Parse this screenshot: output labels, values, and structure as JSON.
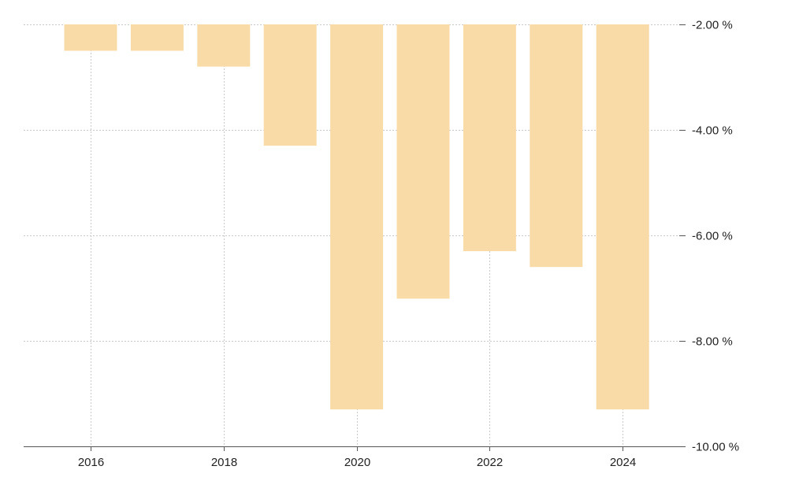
{
  "chart_data": {
    "type": "bar",
    "categories": [
      "2016",
      "2017",
      "2018",
      "2019",
      "2020",
      "2021",
      "2022",
      "2023",
      "2024"
    ],
    "values": [
      -2.5,
      -2.5,
      -2.8,
      -4.3,
      -9.3,
      -7.2,
      -6.3,
      -6.6,
      -9.3
    ],
    "baseline": -2.0,
    "ylim": [
      -10.0,
      -2.0
    ],
    "yticks": [
      -2,
      -4,
      -6,
      -8,
      -10
    ],
    "ytick_labels": [
      "-2.00 %",
      "-4.00 %",
      "-6.00 %",
      "-8.00 %",
      "-10.00 %"
    ],
    "xticks": [
      "2016",
      "2018",
      "2020",
      "2022",
      "2024"
    ],
    "y_axis_side": "right",
    "grid": true,
    "title": "",
    "xlabel": "",
    "ylabel": ""
  },
  "colors": {
    "bar": "#f8dba7",
    "grid": "#c8c8c8",
    "axis": "#555555",
    "text": "#222222"
  }
}
